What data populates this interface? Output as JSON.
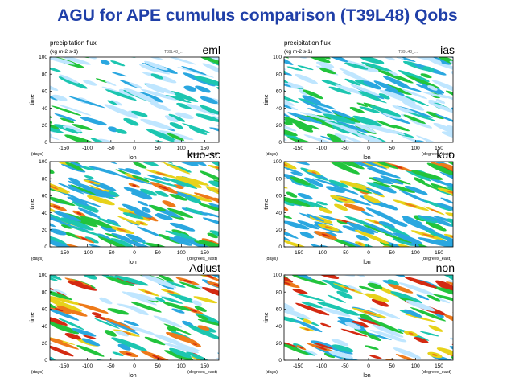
{
  "slide_title": "AGU for APE cumulus comparison (T39L48) Qobs",
  "colors": {
    "title": "#1f3fa8",
    "levels": [
      "#ffffff",
      "#bfe6ff",
      "#2aa7e0",
      "#1cc6b0",
      "#22c43c",
      "#e7d21a",
      "#ee7a1a",
      "#d42a12"
    ]
  },
  "chart_data": [
    {
      "type": "heatmap",
      "scheme": "eml",
      "label": "eml",
      "title": "precipitation flux",
      "units": "(kg m-2 s-1)",
      "run_id": "T39L48_...",
      "xlabel": "lon",
      "x_units": "(degrees_east)",
      "ylabel": "time",
      "y_units": "(days)",
      "xlim": [
        -180,
        180
      ],
      "ylim": [
        0,
        100
      ],
      "xticks": [
        -150,
        -100,
        -50,
        0,
        50,
        100,
        150
      ],
      "yticks": [
        0,
        20,
        40,
        60,
        80,
        100
      ],
      "dominant_level": 2,
      "intensity_range": [
        1,
        4
      ],
      "coverage": 0.55,
      "bands": 14,
      "grid": false
    },
    {
      "type": "heatmap",
      "scheme": "ias",
      "label": "ias",
      "title": "precipitation flux",
      "units": "(kg m-2 s-1)",
      "run_id": "T39L48_...",
      "xlabel": "lon",
      "x_units": "(degrees_east)",
      "ylabel": "time",
      "y_units": "(days)",
      "xlim": [
        -180,
        180
      ],
      "ylim": [
        0,
        100
      ],
      "xticks": [
        -150,
        -100,
        -50,
        0,
        50,
        100,
        150
      ],
      "yticks": [
        0,
        20,
        40,
        60,
        80,
        100
      ],
      "dominant_level": 2,
      "intensity_range": [
        1,
        5
      ],
      "coverage": 0.8,
      "bands": 22,
      "grid": false
    },
    {
      "type": "heatmap",
      "scheme": "kuo-sc",
      "label": "kuo-sc",
      "title": "",
      "units": "",
      "run_id": "",
      "xlabel": "lon",
      "x_units": "(degrees_east)",
      "ylabel": "time",
      "y_units": "(days)",
      "xlim": [
        -180,
        180
      ],
      "ylim": [
        0,
        100
      ],
      "xticks": [
        -150,
        -100,
        -50,
        0,
        50,
        100,
        150
      ],
      "yticks": [
        0,
        20,
        40,
        60,
        80,
        100
      ],
      "dominant_level": 3,
      "intensity_range": [
        2,
        7
      ],
      "coverage": 0.72,
      "bands": 18,
      "grid": false
    },
    {
      "type": "heatmap",
      "scheme": "kuo",
      "label": "kuo",
      "title": "",
      "units": "",
      "run_id": "",
      "xlabel": "lon",
      "x_units": "(degrees_east)",
      "ylabel": "time",
      "y_units": "(days)",
      "xlim": [
        -180,
        180
      ],
      "ylim": [
        0,
        100
      ],
      "xticks": [
        -150,
        -100,
        -50,
        0,
        50,
        100,
        150
      ],
      "yticks": [
        0,
        20,
        40,
        60,
        80,
        100
      ],
      "dominant_level": 3,
      "intensity_range": [
        2,
        7
      ],
      "coverage": 0.74,
      "bands": 18,
      "grid": false
    },
    {
      "type": "heatmap",
      "scheme": "Adjust",
      "label": "Adjust",
      "title": "",
      "units": "",
      "run_id": "",
      "xlabel": "lon",
      "x_units": "(degrees_east)",
      "ylabel": "time",
      "y_units": "(days)",
      "xlim": [
        -180,
        180
      ],
      "ylim": [
        0,
        100
      ],
      "xticks": [
        -150,
        -100,
        -50,
        0,
        50,
        100,
        150
      ],
      "yticks": [
        0,
        20,
        40,
        60,
        80,
        100
      ],
      "dominant_level": 4,
      "intensity_range": [
        1,
        7
      ],
      "coverage": 0.5,
      "bands": 26,
      "grid": false
    },
    {
      "type": "heatmap",
      "scheme": "non",
      "label": "non",
      "title": "",
      "units": "",
      "run_id": "",
      "xlabel": "lon",
      "x_units": "(degrees_east)",
      "ylabel": "time",
      "y_units": "(days)",
      "xlim": [
        -180,
        180
      ],
      "ylim": [
        0,
        100
      ],
      "xticks": [
        -150,
        -100,
        -50,
        0,
        50,
        100,
        150
      ],
      "yticks": [
        0,
        20,
        40,
        60,
        80,
        100
      ],
      "dominant_level": 4,
      "intensity_range": [
        1,
        7
      ],
      "coverage": 0.5,
      "bands": 26,
      "grid": false
    }
  ]
}
